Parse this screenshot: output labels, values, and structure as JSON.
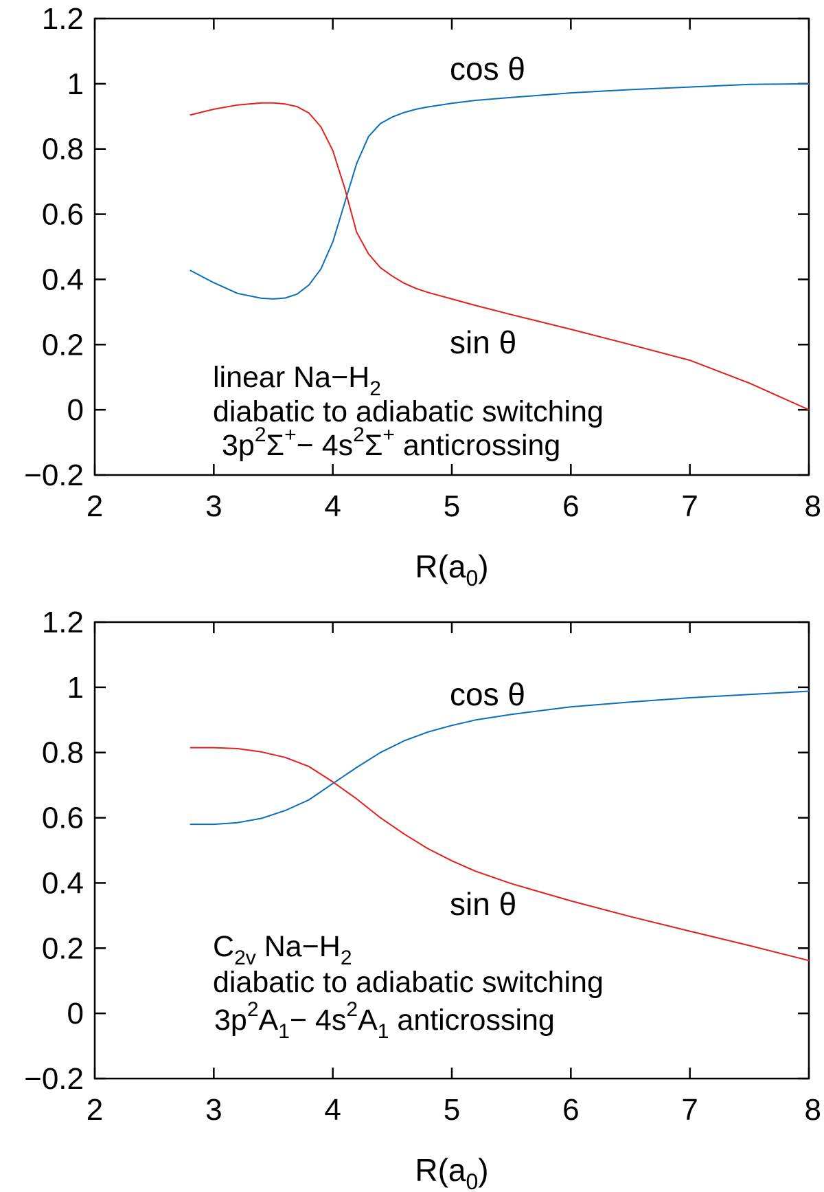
{
  "chart_data": [
    {
      "type": "line",
      "xlabel": "R(a0)",
      "xlabel_parts": {
        "main": "R(a",
        "sub": "0",
        "close": ")"
      },
      "xlim": [
        2,
        8
      ],
      "ylim": [
        -0.2,
        1.2
      ],
      "xticks": [
        "2",
        "3",
        "4",
        "5",
        "6",
        "7",
        "8"
      ],
      "yticks": [
        "−0.2",
        "0",
        "0.2",
        "0.4",
        "0.6",
        "0.8",
        "1",
        "1.2"
      ],
      "grid": false,
      "legend": "inline labels",
      "series": [
        {
          "name": "cos θ",
          "color": "#0a6eb8",
          "x": [
            2.8,
            3.0,
            3.2,
            3.4,
            3.5,
            3.6,
            3.7,
            3.8,
            3.9,
            4.0,
            4.1,
            4.2,
            4.3,
            4.4,
            4.5,
            4.6,
            4.7,
            4.8,
            5.0,
            5.2,
            5.5,
            6.0,
            6.5,
            7.0,
            7.5,
            8.0
          ],
          "y": [
            0.428,
            0.39,
            0.357,
            0.342,
            0.34,
            0.343,
            0.355,
            0.383,
            0.432,
            0.515,
            0.635,
            0.755,
            0.838,
            0.878,
            0.898,
            0.912,
            0.922,
            0.929,
            0.94,
            0.949,
            0.958,
            0.972,
            0.982,
            0.99,
            0.998,
            1.0
          ]
        },
        {
          "name": "sin θ",
          "color": "#e3201b",
          "x": [
            2.8,
            3.0,
            3.2,
            3.4,
            3.5,
            3.6,
            3.7,
            3.8,
            3.9,
            4.0,
            4.1,
            4.2,
            4.3,
            4.4,
            4.5,
            4.6,
            4.7,
            4.8,
            5.0,
            5.2,
            5.5,
            6.0,
            6.5,
            7.0,
            7.5,
            8.0
          ],
          "y": [
            0.904,
            0.922,
            0.935,
            0.941,
            0.941,
            0.938,
            0.93,
            0.91,
            0.868,
            0.795,
            0.68,
            0.545,
            0.478,
            0.436,
            0.41,
            0.388,
            0.372,
            0.36,
            0.34,
            0.32,
            0.292,
            0.247,
            0.2,
            0.152,
            0.082,
            0.0
          ]
        }
      ],
      "annotation": {
        "line1": {
          "pre": "linear Na−H",
          "sub": "2"
        },
        "line2": "diabatic to adiabatic switching",
        "line3": {
          "a": "3p",
          "sup1": "2",
          "b": "Σ",
          "sup2": "+",
          "c": "− 4s",
          "sup3": "2",
          "d": "Σ",
          "sup4": "+",
          "e": " anticrossing"
        }
      },
      "series_labels": {
        "cos": "cos θ",
        "sin": "sin θ"
      }
    },
    {
      "type": "line",
      "xlabel": "R(a0)",
      "xlabel_parts": {
        "main": "R(a",
        "sub": "0",
        "close": ")"
      },
      "xlim": [
        2,
        8
      ],
      "ylim": [
        -0.2,
        1.2
      ],
      "xticks": [
        "2",
        "3",
        "4",
        "5",
        "6",
        "7",
        "8"
      ],
      "yticks": [
        "−0.2",
        "0",
        "0.2",
        "0.4",
        "0.6",
        "0.8",
        "1",
        "1.2"
      ],
      "grid": false,
      "legend": "inline labels",
      "series": [
        {
          "name": "cos θ",
          "color": "#0a6eb8",
          "x": [
            2.8,
            3.0,
            3.2,
            3.4,
            3.6,
            3.8,
            4.0,
            4.2,
            4.4,
            4.6,
            4.8,
            5.0,
            5.2,
            5.5,
            6.0,
            6.5,
            7.0,
            7.5,
            8.0
          ],
          "y": [
            0.58,
            0.58,
            0.585,
            0.598,
            0.622,
            0.655,
            0.705,
            0.754,
            0.8,
            0.836,
            0.863,
            0.883,
            0.9,
            0.917,
            0.94,
            0.955,
            0.968,
            0.978,
            0.988
          ]
        },
        {
          "name": "sin θ",
          "color": "#e3201b",
          "x": [
            2.8,
            3.0,
            3.2,
            3.4,
            3.6,
            3.8,
            4.0,
            4.2,
            4.4,
            4.6,
            4.8,
            5.0,
            5.2,
            5.5,
            6.0,
            6.5,
            7.0,
            7.5,
            8.0
          ],
          "y": [
            0.815,
            0.815,
            0.812,
            0.802,
            0.785,
            0.757,
            0.71,
            0.658,
            0.6,
            0.55,
            0.505,
            0.468,
            0.436,
            0.398,
            0.345,
            0.297,
            0.252,
            0.208,
            0.162
          ]
        }
      ],
      "annotation": {
        "line1": {
          "pre": "C",
          "sub": "2v",
          "post": "  Na−H",
          "sub2": "2"
        },
        "line2": "diabatic to adiabatic switching",
        "line3": {
          "a": " 3p",
          "sup1": "2",
          "b": "A",
          "sub1": "1",
          "c": "−  4s",
          "sup2": "2",
          "d": "A",
          "sub2": "1",
          "e": " anticrossing"
        }
      },
      "series_labels": {
        "cos": "cos θ",
        "sin": "sin θ"
      }
    }
  ]
}
